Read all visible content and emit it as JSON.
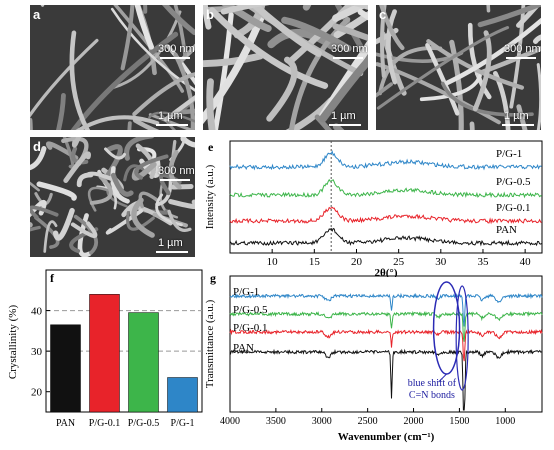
{
  "sem_panels": [
    {
      "label": "a",
      "inset_scale": "300 nm",
      "main_scale": "1 µm"
    },
    {
      "label": "b",
      "inset_scale": "300 nm",
      "main_scale": "1 µm"
    },
    {
      "label": "c",
      "inset_scale": "300 nm",
      "main_scale": "1 µm"
    },
    {
      "label": "d",
      "inset_scale": "300 nm",
      "main_scale": "1 µm"
    }
  ],
  "colors": {
    "PAN": "#111111",
    "P/G-0.1": "#e8232a",
    "P/G-0.5": "#3db54a",
    "P/G-1": "#2e86c8"
  },
  "chart_data": [
    {
      "panel": "e",
      "type": "line",
      "xlabel": "2θ(°)",
      "ylabel": "Intensity (a.u.)",
      "xlim": [
        5,
        42
      ],
      "xticks": [
        "10",
        "15",
        "20",
        "25",
        "30",
        "35",
        "40"
      ],
      "series": [
        {
          "name": "P/G-1",
          "peak_2theta": 17
        },
        {
          "name": "P/G-0.5",
          "peak_2theta": 17
        },
        {
          "name": "P/G-0.1",
          "peak_2theta": 17
        },
        {
          "name": "PAN",
          "peak_2theta": 17
        }
      ]
    },
    {
      "panel": "f",
      "type": "bar",
      "ylabel": "Crystallinity (%)",
      "ylim": [
        15,
        50
      ],
      "yticks": [
        "20",
        "30",
        "40"
      ],
      "categories": [
        "PAN",
        "P/G-0.1",
        "P/G-0.5",
        "P/G-1"
      ],
      "values": [
        36.5,
        44,
        39.5,
        23.5
      ],
      "grid": "dashed at 30, 40, 50"
    },
    {
      "panel": "g",
      "type": "line",
      "xlabel": "Wavenumber (cm⁻¹)",
      "ylabel": "Transmittance (a.u.)",
      "xlim": [
        4000,
        600
      ],
      "xticks": [
        "4000",
        "3500",
        "3000",
        "2500",
        "2000",
        "1500",
        "1000"
      ],
      "series": [
        {
          "name": "P/G-1"
        },
        {
          "name": "P/G-0.5"
        },
        {
          "name": "P/G-0.1"
        },
        {
          "name": "PAN"
        }
      ],
      "annotation": "blue shift of C=N bonds"
    }
  ],
  "panel_labels": {
    "e": "e",
    "f": "f",
    "g": "g"
  }
}
